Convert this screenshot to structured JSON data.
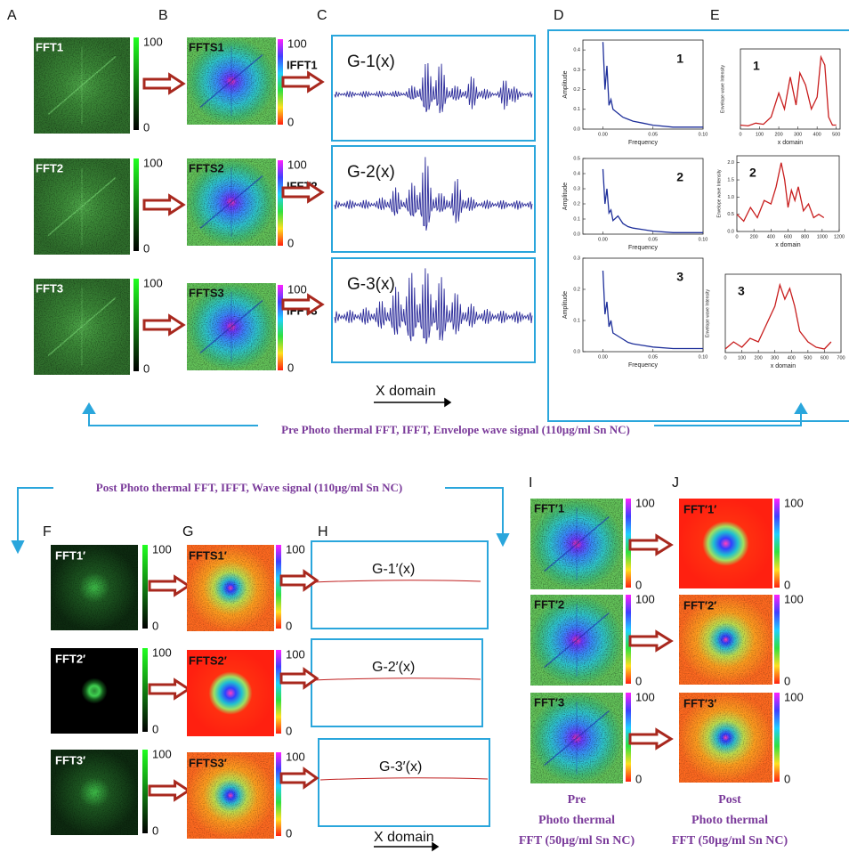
{
  "panel_labels": [
    "A",
    "B",
    "C",
    "D",
    "E",
    "F",
    "G",
    "H",
    "I",
    "J"
  ],
  "pre": {
    "rows": [
      {
        "fft": "FFT1",
        "fft_max": 100,
        "fft_min": 0,
        "ffts": "FFTS1",
        "ffts_max": 100,
        "ffts_min": 0,
        "ifft": "IFFT1",
        "signal": "G-1(x)"
      },
      {
        "fft": "FFT2",
        "fft_max": 100,
        "fft_min": 0,
        "ffts": "FFTS2",
        "ffts_max": 100,
        "ffts_min": 0,
        "ifft": "IFFT2",
        "signal": "G-2(x)"
      },
      {
        "fft": "FFT3",
        "fft_max": 100,
        "fft_min": 0,
        "ffts": "FFTS3",
        "ffts_max": 100,
        "ffts_min": 0,
        "ifft": "IFFT3",
        "signal": "G-3(x)"
      }
    ],
    "x_domain": "X domain",
    "caption": "Pre Photo thermal  FFT, IFFT, Envelope wave signal (110µg/ml Sn NC)"
  },
  "spectra": [
    {
      "label": "1",
      "y_label": "Amplitude",
      "x_label": "Frequency",
      "xlim": [
        -0.02,
        0.1
      ],
      "ylim": [
        0,
        0.45
      ],
      "xticks": [
        {
          "value": 0,
          "label": "0.00"
        },
        {
          "value": 0.05,
          "label": "0.05"
        },
        {
          "value": 0.1,
          "label": "0.10"
        }
      ],
      "yticks": [
        {
          "value": 0,
          "label": "0.0"
        },
        {
          "value": 0.1,
          "label": "0.1"
        },
        {
          "value": 0.2,
          "label": "0.2"
        },
        {
          "value": 0.3,
          "label": "0.3"
        },
        {
          "value": 0.4,
          "label": "0.4"
        }
      ],
      "x": [
        0,
        0.002,
        0.004,
        0.006,
        0.008,
        0.01,
        0.015,
        0.02,
        0.025,
        0.03,
        0.04,
        0.05,
        0.07,
        0.1
      ],
      "values": [
        0.44,
        0.2,
        0.32,
        0.12,
        0.15,
        0.1,
        0.08,
        0.06,
        0.05,
        0.04,
        0.03,
        0.02,
        0.01,
        0.01
      ]
    },
    {
      "label": "2",
      "y_label": "Amplitude",
      "x_label": "Frequency",
      "xlim": [
        -0.02,
        0.1
      ],
      "ylim": [
        0,
        0.5
      ],
      "xticks": [
        {
          "value": 0,
          "label": "0.00"
        },
        {
          "value": 0.05,
          "label": "0.05"
        },
        {
          "value": 0.1,
          "label": "0.10"
        }
      ],
      "yticks": [
        {
          "value": 0,
          "label": "0.0"
        },
        {
          "value": 0.1,
          "label": "0.1"
        },
        {
          "value": 0.2,
          "label": "0.2"
        },
        {
          "value": 0.3,
          "label": "0.3"
        },
        {
          "value": 0.4,
          "label": "0.4"
        },
        {
          "value": 0.5,
          "label": "0.5"
        }
      ],
      "x": [
        0,
        0.002,
        0.004,
        0.006,
        0.008,
        0.01,
        0.015,
        0.02,
        0.025,
        0.03,
        0.04,
        0.05,
        0.07,
        0.1
      ],
      "values": [
        0.43,
        0.2,
        0.3,
        0.14,
        0.16,
        0.09,
        0.12,
        0.07,
        0.05,
        0.04,
        0.03,
        0.02,
        0.01,
        0.01
      ]
    },
    {
      "label": "3",
      "y_label": "Amplitude",
      "x_label": "Frequency",
      "xlim": [
        -0.02,
        0.1
      ],
      "ylim": [
        0,
        0.3
      ],
      "xticks": [
        {
          "value": 0,
          "label": "0.00"
        },
        {
          "value": 0.05,
          "label": "0.05"
        },
        {
          "value": 0.1,
          "label": "0.10"
        }
      ],
      "yticks": [
        {
          "value": 0,
          "label": "0.0"
        },
        {
          "value": 0.1,
          "label": "0.1"
        },
        {
          "value": 0.2,
          "label": "0.2"
        },
        {
          "value": 0.3,
          "label": "0.3"
        }
      ],
      "x": [
        0,
        0.002,
        0.004,
        0.006,
        0.008,
        0.01,
        0.015,
        0.02,
        0.025,
        0.03,
        0.04,
        0.05,
        0.07,
        0.1
      ],
      "values": [
        0.26,
        0.12,
        0.16,
        0.08,
        0.1,
        0.06,
        0.05,
        0.04,
        0.03,
        0.025,
        0.02,
        0.015,
        0.01,
        0.01
      ]
    }
  ],
  "envelopes": [
    {
      "label": "1",
      "y_label": "Envelope wave Intensity",
      "x_label": "x domain",
      "xlim": [
        0,
        520
      ],
      "ylim": [
        0,
        2
      ],
      "xticks": [
        0,
        100,
        200,
        300,
        400,
        500
      ],
      "x": [
        0,
        40,
        80,
        120,
        160,
        200,
        230,
        260,
        290,
        310,
        340,
        370,
        400,
        420,
        440,
        460,
        480,
        500
      ],
      "values": [
        0.1,
        0.08,
        0.15,
        0.12,
        0.3,
        0.9,
        0.5,
        1.3,
        0.6,
        1.4,
        1.1,
        0.5,
        0.8,
        1.8,
        1.6,
        0.3,
        0.1,
        0.1
      ]
    },
    {
      "label": "2",
      "y_label": "Envelope wave Intensity",
      "x_label": "x domain",
      "xlim": [
        0,
        1200
      ],
      "ylim": [
        0,
        2.2
      ],
      "xticks": [
        0,
        200,
        400,
        600,
        800,
        1000,
        1200
      ],
      "yticks": [
        {
          "value": 0,
          "label": "0.0"
        },
        {
          "value": 0.5,
          "label": "0.5"
        },
        {
          "value": 1,
          "label": "1.0"
        },
        {
          "value": 1.5,
          "label": "1.5"
        },
        {
          "value": 2,
          "label": "2.0"
        }
      ],
      "x": [
        0,
        80,
        160,
        240,
        320,
        400,
        460,
        520,
        560,
        600,
        640,
        680,
        720,
        780,
        840,
        900,
        960,
        1020
      ],
      "values": [
        0.5,
        0.3,
        0.7,
        0.4,
        0.9,
        0.8,
        1.3,
        2.0,
        1.5,
        0.7,
        1.2,
        0.9,
        1.3,
        0.6,
        0.8,
        0.4,
        0.5,
        0.4
      ]
    },
    {
      "label": "3",
      "y_label": "Envelope wave Intensity",
      "x_label": "x domain",
      "xlim": [
        0,
        700
      ],
      "ylim": [
        0,
        2.2
      ],
      "xticks": [
        0,
        100,
        200,
        300,
        400,
        500,
        600,
        700
      ],
      "x": [
        0,
        50,
        100,
        150,
        200,
        250,
        300,
        330,
        360,
        390,
        420,
        450,
        500,
        550,
        600,
        640
      ],
      "values": [
        0.1,
        0.3,
        0.15,
        0.4,
        0.3,
        0.8,
        1.3,
        1.9,
        1.5,
        1.8,
        1.3,
        0.6,
        0.3,
        0.15,
        0.1,
        0.3
      ]
    }
  ],
  "post": {
    "rows": [
      {
        "fft": "FFT1′",
        "fft_max": 100,
        "fft_min": 0,
        "ffts": "FFTS1′",
        "ffts_max": 100,
        "ffts_min": 0,
        "signal": "G-1′(x)"
      },
      {
        "fft": "FFT2′",
        "fft_max": 100,
        "fft_min": 0,
        "ffts": "FFTS2′",
        "ffts_max": 100,
        "ffts_min": 0,
        "signal": "G-2′(x)"
      },
      {
        "fft": "FFT3′",
        "fft_max": 100,
        "fft_min": 0,
        "ffts": "FFTS3′",
        "ffts_max": 100,
        "ffts_min": 0,
        "signal": "G-3′(x)"
      }
    ],
    "x_domain": "X domain",
    "caption": "Post Photo thermal FFT, IFFT, Wave signal (110µg/ml Sn NC)"
  },
  "pre50": {
    "rows": [
      {
        "label": "FFT′1",
        "max": 100,
        "min": 0
      },
      {
        "label": "FFT′2",
        "max": 100,
        "min": 0
      },
      {
        "label": "FFT′3",
        "max": 100,
        "min": 0
      }
    ],
    "caption": [
      "Pre",
      "Photo thermal",
      "FFT (50µg/ml Sn NC)"
    ]
  },
  "post50": {
    "rows": [
      {
        "label": "FFT′1′",
        "max": 100,
        "min": 0
      },
      {
        "label": "FFT′2′",
        "max": 100,
        "min": 0
      },
      {
        "label": "FFT′3′",
        "max": 100,
        "min": 0
      }
    ],
    "caption": [
      "Post",
      "Photo thermal",
      "FFT (50µg/ml Sn NC)"
    ]
  }
}
